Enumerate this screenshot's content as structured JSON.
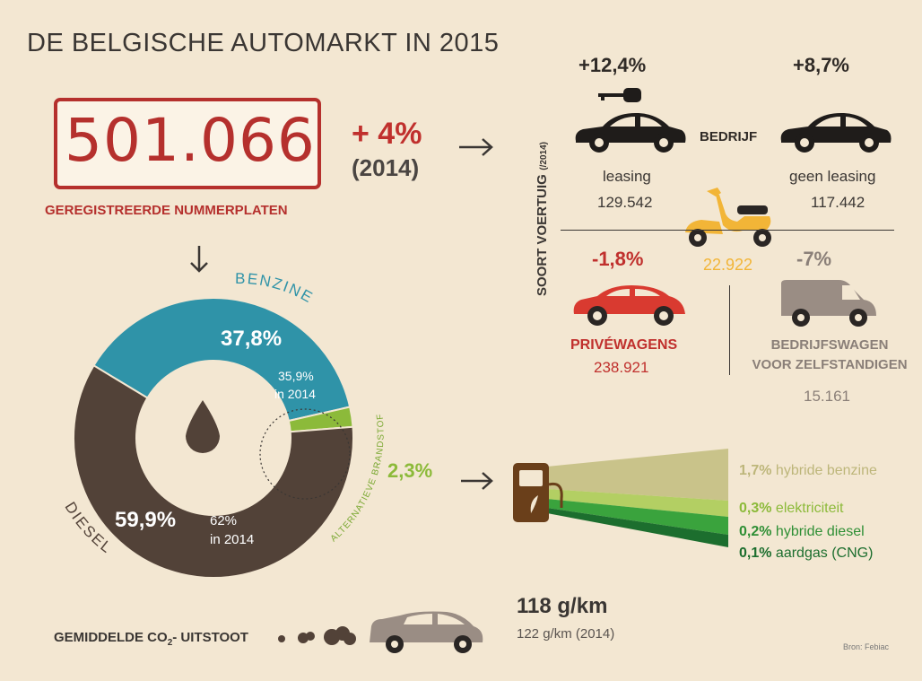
{
  "title": "DE  BELGISCHE AUTOMARKT IN 2015",
  "registrations": {
    "total": "501.066",
    "label": "GEREGISTREERDE NUMMERPLATEN",
    "change": "+ 4%",
    "change_ref": "(2014)"
  },
  "vehicle_type": {
    "axis_label": "SOORT VOERTUIG",
    "axis_note": "(/2014)",
    "company_label": "BEDRIJF",
    "leasing": {
      "change": "+12,4%",
      "label": "leasing",
      "value": "129.542"
    },
    "no_leasing": {
      "change": "+8,7%",
      "label": "geen leasing",
      "value": "117.442"
    },
    "scooter": {
      "value": "22.922"
    },
    "private": {
      "change": "-1,8%",
      "label": "PRIVÉWAGENS",
      "value": "238.921"
    },
    "van": {
      "change": "-7%",
      "label_line1": "BEDRIJFSWAGEN",
      "label_line2": "VOOR ZELFSTANDIGEN",
      "value": "15.161"
    }
  },
  "fuel": {
    "benzine_label": "BENZINE",
    "diesel_label": "DIESEL",
    "alt_label": "ALTERNATIEVE BRANDSTOF",
    "benzine_pct": "37,8%",
    "benzine_2014_pct": "35,9%",
    "benzine_2014_year": "in 2014",
    "diesel_pct": "59,9%",
    "diesel_2014_pct": "62%",
    "diesel_2014_year": "in 2014",
    "alt_pct": "2,3%"
  },
  "alternatives": [
    {
      "pct": "1,7%",
      "label": "hybride benzine",
      "color": "#c9c38a"
    },
    {
      "pct": "0,3%",
      "label": "elektriciteit",
      "color": "#b3cf63"
    },
    {
      "pct": "0,2%",
      "label": "hybride diesel",
      "color": "#3aa33d"
    },
    {
      "pct": "0,1%",
      "label": "aardgas (CNG)",
      "color": "#1c6e2e"
    }
  ],
  "co2": {
    "label_pre": "GEMIDDELDE CO",
    "label_sub": "2",
    "label_post": "- UITSTOOT",
    "value": "118 g/km",
    "value_2014": "122 g/km (2014)"
  },
  "source": "Bron: Febiac",
  "colors": {
    "background": "#f3e7d2",
    "red": "#c0302d",
    "benzine": "#2f93a8",
    "diesel": "#524238",
    "alt": "#8cba3a",
    "scooter": "#f2b537",
    "van": "#9a8d84"
  },
  "chart_data": {
    "type": "pie",
    "categories": [
      "BENZINE",
      "DIESEL",
      "ALTERNATIEVE BRANDSTOF"
    ],
    "values": [
      37.8,
      59.9,
      2.3
    ],
    "values_2014": [
      35.9,
      62,
      null
    ],
    "sub_breakdown": {
      "categories": [
        "hybride benzine",
        "elektriciteit",
        "hybride diesel",
        "aardgas (CNG)"
      ],
      "values": [
        1.7,
        0.3,
        0.2,
        0.1
      ]
    }
  }
}
